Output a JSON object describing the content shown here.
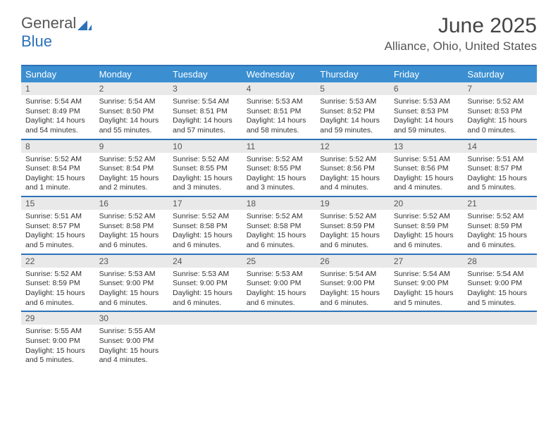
{
  "logo": {
    "text_general": "General",
    "text_blue": "Blue",
    "icon_color": "#2d72b8"
  },
  "header": {
    "month_title": "June 2025",
    "location": "Alliance, Ohio, United States"
  },
  "colors": {
    "header_blue": "#3b8fd1",
    "border_blue": "#2d72b8",
    "day_num_bg": "#e9e9e9",
    "text": "#333333"
  },
  "day_names": [
    "Sunday",
    "Monday",
    "Tuesday",
    "Wednesday",
    "Thursday",
    "Friday",
    "Saturday"
  ],
  "weeks": [
    [
      {
        "n": "1",
        "sr": "Sunrise: 5:54 AM",
        "ss": "Sunset: 8:49 PM",
        "dl": "Daylight: 14 hours and 54 minutes."
      },
      {
        "n": "2",
        "sr": "Sunrise: 5:54 AM",
        "ss": "Sunset: 8:50 PM",
        "dl": "Daylight: 14 hours and 55 minutes."
      },
      {
        "n": "3",
        "sr": "Sunrise: 5:54 AM",
        "ss": "Sunset: 8:51 PM",
        "dl": "Daylight: 14 hours and 57 minutes."
      },
      {
        "n": "4",
        "sr": "Sunrise: 5:53 AM",
        "ss": "Sunset: 8:51 PM",
        "dl": "Daylight: 14 hours and 58 minutes."
      },
      {
        "n": "5",
        "sr": "Sunrise: 5:53 AM",
        "ss": "Sunset: 8:52 PM",
        "dl": "Daylight: 14 hours and 59 minutes."
      },
      {
        "n": "6",
        "sr": "Sunrise: 5:53 AM",
        "ss": "Sunset: 8:53 PM",
        "dl": "Daylight: 14 hours and 59 minutes."
      },
      {
        "n": "7",
        "sr": "Sunrise: 5:52 AM",
        "ss": "Sunset: 8:53 PM",
        "dl": "Daylight: 15 hours and 0 minutes."
      }
    ],
    [
      {
        "n": "8",
        "sr": "Sunrise: 5:52 AM",
        "ss": "Sunset: 8:54 PM",
        "dl": "Daylight: 15 hours and 1 minute."
      },
      {
        "n": "9",
        "sr": "Sunrise: 5:52 AM",
        "ss": "Sunset: 8:54 PM",
        "dl": "Daylight: 15 hours and 2 minutes."
      },
      {
        "n": "10",
        "sr": "Sunrise: 5:52 AM",
        "ss": "Sunset: 8:55 PM",
        "dl": "Daylight: 15 hours and 3 minutes."
      },
      {
        "n": "11",
        "sr": "Sunrise: 5:52 AM",
        "ss": "Sunset: 8:55 PM",
        "dl": "Daylight: 15 hours and 3 minutes."
      },
      {
        "n": "12",
        "sr": "Sunrise: 5:52 AM",
        "ss": "Sunset: 8:56 PM",
        "dl": "Daylight: 15 hours and 4 minutes."
      },
      {
        "n": "13",
        "sr": "Sunrise: 5:51 AM",
        "ss": "Sunset: 8:56 PM",
        "dl": "Daylight: 15 hours and 4 minutes."
      },
      {
        "n": "14",
        "sr": "Sunrise: 5:51 AM",
        "ss": "Sunset: 8:57 PM",
        "dl": "Daylight: 15 hours and 5 minutes."
      }
    ],
    [
      {
        "n": "15",
        "sr": "Sunrise: 5:51 AM",
        "ss": "Sunset: 8:57 PM",
        "dl": "Daylight: 15 hours and 5 minutes."
      },
      {
        "n": "16",
        "sr": "Sunrise: 5:52 AM",
        "ss": "Sunset: 8:58 PM",
        "dl": "Daylight: 15 hours and 6 minutes."
      },
      {
        "n": "17",
        "sr": "Sunrise: 5:52 AM",
        "ss": "Sunset: 8:58 PM",
        "dl": "Daylight: 15 hours and 6 minutes."
      },
      {
        "n": "18",
        "sr": "Sunrise: 5:52 AM",
        "ss": "Sunset: 8:58 PM",
        "dl": "Daylight: 15 hours and 6 minutes."
      },
      {
        "n": "19",
        "sr": "Sunrise: 5:52 AM",
        "ss": "Sunset: 8:59 PM",
        "dl": "Daylight: 15 hours and 6 minutes."
      },
      {
        "n": "20",
        "sr": "Sunrise: 5:52 AM",
        "ss": "Sunset: 8:59 PM",
        "dl": "Daylight: 15 hours and 6 minutes."
      },
      {
        "n": "21",
        "sr": "Sunrise: 5:52 AM",
        "ss": "Sunset: 8:59 PM",
        "dl": "Daylight: 15 hours and 6 minutes."
      }
    ],
    [
      {
        "n": "22",
        "sr": "Sunrise: 5:52 AM",
        "ss": "Sunset: 8:59 PM",
        "dl": "Daylight: 15 hours and 6 minutes."
      },
      {
        "n": "23",
        "sr": "Sunrise: 5:53 AM",
        "ss": "Sunset: 9:00 PM",
        "dl": "Daylight: 15 hours and 6 minutes."
      },
      {
        "n": "24",
        "sr": "Sunrise: 5:53 AM",
        "ss": "Sunset: 9:00 PM",
        "dl": "Daylight: 15 hours and 6 minutes."
      },
      {
        "n": "25",
        "sr": "Sunrise: 5:53 AM",
        "ss": "Sunset: 9:00 PM",
        "dl": "Daylight: 15 hours and 6 minutes."
      },
      {
        "n": "26",
        "sr": "Sunrise: 5:54 AM",
        "ss": "Sunset: 9:00 PM",
        "dl": "Daylight: 15 hours and 6 minutes."
      },
      {
        "n": "27",
        "sr": "Sunrise: 5:54 AM",
        "ss": "Sunset: 9:00 PM",
        "dl": "Daylight: 15 hours and 5 minutes."
      },
      {
        "n": "28",
        "sr": "Sunrise: 5:54 AM",
        "ss": "Sunset: 9:00 PM",
        "dl": "Daylight: 15 hours and 5 minutes."
      }
    ],
    [
      {
        "n": "29",
        "sr": "Sunrise: 5:55 AM",
        "ss": "Sunset: 9:00 PM",
        "dl": "Daylight: 15 hours and 5 minutes."
      },
      {
        "n": "30",
        "sr": "Sunrise: 5:55 AM",
        "ss": "Sunset: 9:00 PM",
        "dl": "Daylight: 15 hours and 4 minutes."
      },
      {
        "empty": true
      },
      {
        "empty": true
      },
      {
        "empty": true
      },
      {
        "empty": true
      },
      {
        "empty": true
      }
    ]
  ]
}
